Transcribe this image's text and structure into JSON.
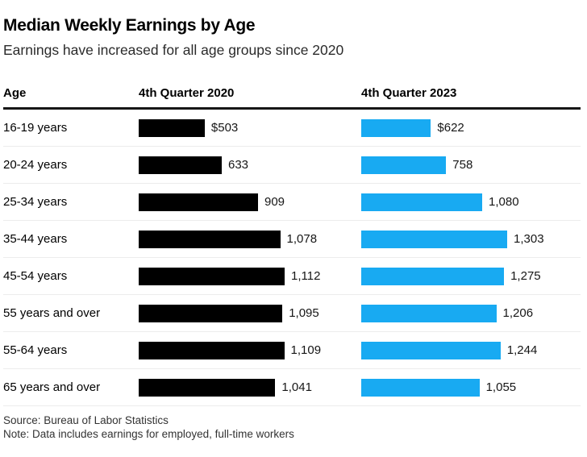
{
  "header": {
    "title": "Median Weekly Earnings by Age",
    "subtitle": "Earnings have increased for all age groups since 2020"
  },
  "table": {
    "age_column_label": "Age",
    "q2020_column_label": "4th Quarter 2020",
    "q2023_column_label": "4th Quarter 2023"
  },
  "footer": {
    "source": "Source: Bureau of Labor Statistics",
    "note": "Note: Data includes earnings for employed, full-time workers"
  },
  "colors": {
    "bar_2020": "#000000",
    "bar_2023": "#18aaf2",
    "header_rule": "#161616",
    "row_separator": "#ececec"
  },
  "chart_data": {
    "type": "bar",
    "orientation": "horizontal",
    "title": "Median Weekly Earnings by Age",
    "subtitle": "Earnings have increased for all age groups since 2020",
    "categories": [
      "16-19 years",
      "20-24 years",
      "25-34 years",
      "35-44 years",
      "45-54 years",
      "55 years and over",
      "55-64 years",
      "65 years and over"
    ],
    "series": [
      {
        "name": "4th Quarter 2020",
        "color": "#000000",
        "values": [
          503,
          633,
          909,
          1078,
          1112,
          1095,
          1109,
          1041
        ],
        "labels": [
          "$503",
          "633",
          "909",
          "1,078",
          "1,112",
          "1,095",
          "1,109",
          "1,041"
        ]
      },
      {
        "name": "4th Quarter 2023",
        "color": "#18aaf2",
        "values": [
          622,
          758,
          1080,
          1303,
          1275,
          1206,
          1244,
          1055
        ],
        "labels": [
          "$622",
          "758",
          "1,080",
          "1,303",
          "1,275",
          "1,206",
          "1,244",
          "1,055"
        ]
      }
    ],
    "value_prefix_first_row": "$",
    "grid": false,
    "legend_position": "column-headers",
    "layout_note": "table of horizontal bars; each quarter column scaled independently to its own maximum"
  }
}
